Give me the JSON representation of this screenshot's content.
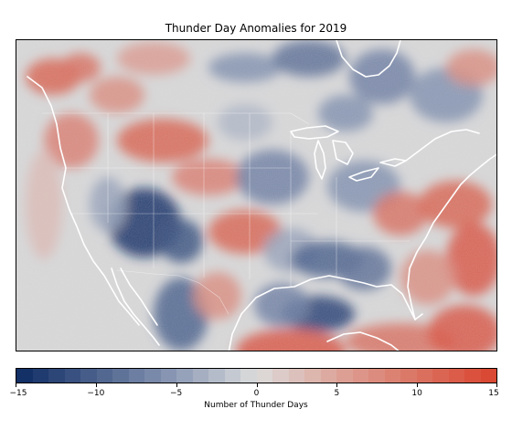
{
  "figure": {
    "title": "Thunder Day Anomalies for 2019"
  },
  "colorbar": {
    "label": "Number of Thunder Days",
    "min": -15,
    "max": 15,
    "ticks": [
      -15,
      -10,
      -5,
      0,
      5,
      10,
      15
    ],
    "tick_labels": [
      "−15",
      "−10",
      "−5",
      "0",
      "5",
      "10",
      "15"
    ],
    "steps": 30,
    "colors": {
      "low": "#0d2a63",
      "mid_low": "#7f8fae",
      "center": "#dcdcdc",
      "mid_high": "#dd9a8e",
      "high": "#d9442e"
    }
  },
  "map": {
    "region": "Contiguous United States and surrounding areas",
    "background_color": "#d9d9d9",
    "boundary_color": "#ffffff"
  }
}
